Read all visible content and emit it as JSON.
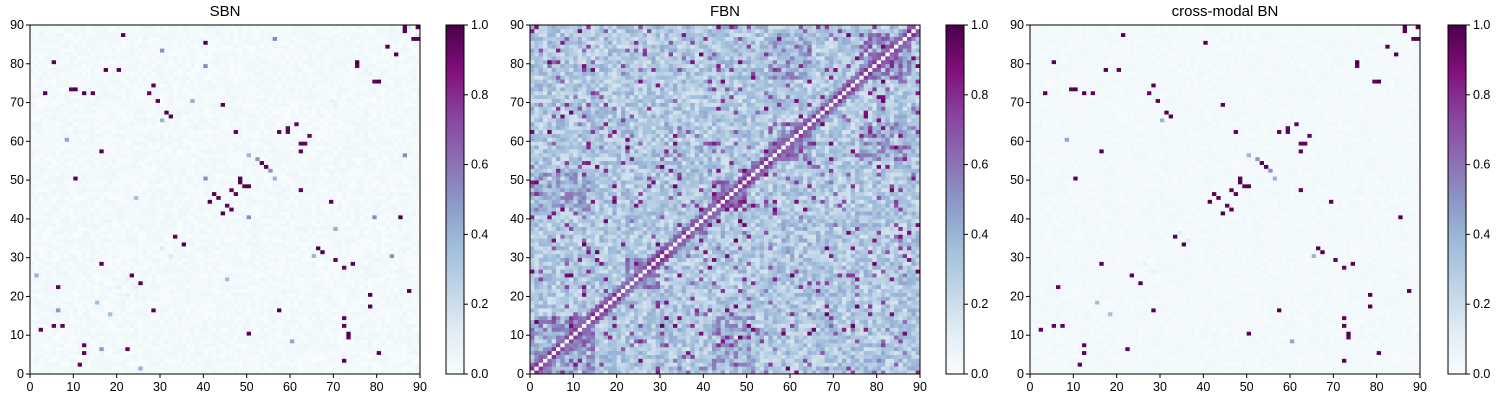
{
  "chart_data": [
    {
      "type": "heatmap",
      "title": "SBN",
      "xlabel": "",
      "ylabel": "",
      "xlim": [
        0,
        90
      ],
      "ylim": [
        0,
        90
      ],
      "grid_size": 90,
      "x_ticks": [
        "0",
        "10",
        "20",
        "30",
        "40",
        "50",
        "60",
        "70",
        "80",
        "90"
      ],
      "y_ticks": [
        "0",
        "10",
        "20",
        "30",
        "40",
        "50",
        "60",
        "70",
        "80",
        "90"
      ],
      "colorbar": {
        "range": [
          0,
          1
        ],
        "ticks": [
          "0.0",
          "0.2",
          "0.4",
          "0.6",
          "0.8",
          "1.0"
        ]
      },
      "colormap": [
        "#f7fcfd",
        "#e0ecf4",
        "#bfd3e6",
        "#9ebcda",
        "#8c96c6",
        "#8c6bb1",
        "#88419d",
        "#810f7c",
        "#4d004b"
      ],
      "background_value": 0.02,
      "strong_links": [
        [
          11,
          2
        ],
        [
          12,
          5
        ],
        [
          21,
          87
        ],
        [
          22,
          6
        ],
        [
          23,
          25
        ],
        [
          25,
          23
        ],
        [
          27,
          72
        ],
        [
          28,
          74
        ],
        [
          29,
          70
        ],
        [
          31,
          67
        ],
        [
          33,
          35
        ],
        [
          35,
          33
        ],
        [
          40,
          85
        ],
        [
          43,
          45
        ],
        [
          44,
          41
        ],
        [
          45,
          43
        ],
        [
          46,
          42
        ],
        [
          47,
          46
        ],
        [
          48,
          49
        ],
        [
          50,
          48
        ],
        [
          53,
          54
        ],
        [
          55,
          52
        ],
        [
          59,
          62
        ],
        [
          61,
          64
        ],
        [
          62,
          57
        ],
        [
          63,
          59
        ],
        [
          66,
          32
        ],
        [
          69,
          44
        ],
        [
          72,
          12
        ],
        [
          73,
          10
        ],
        [
          75,
          79
        ],
        [
          78,
          17
        ],
        [
          80,
          75
        ],
        [
          82,
          84
        ],
        [
          84,
          82
        ],
        [
          86,
          90
        ],
        [
          88,
          86
        ],
        [
          89,
          89
        ],
        [
          3,
          72
        ],
        [
          9,
          73
        ],
        [
          5,
          80
        ],
        [
          10,
          50
        ],
        [
          28,
          16
        ],
        [
          47,
          62
        ],
        [
          62,
          47
        ],
        [
          20,
          78
        ],
        [
          57,
          16
        ],
        [
          7,
          12
        ],
        [
          14,
          72
        ],
        [
          72,
          14
        ]
      ],
      "medium_links": [
        [
          15,
          18
        ],
        [
          18,
          15
        ],
        [
          52,
          55
        ],
        [
          56,
          50
        ],
        [
          65,
          30
        ],
        [
          30,
          65
        ],
        [
          8,
          60
        ],
        [
          60,
          8
        ],
        [
          37,
          70
        ],
        [
          70,
          37
        ],
        [
          79,
          40
        ],
        [
          40,
          79
        ],
        [
          1,
          25
        ],
        [
          25,
          1
        ],
        [
          16,
          6
        ],
        [
          6,
          16
        ],
        [
          45,
          24
        ],
        [
          24,
          45
        ],
        [
          83,
          30
        ],
        [
          30,
          83
        ],
        [
          50,
          40
        ],
        [
          40,
          50
        ],
        [
          86,
          56
        ],
        [
          56,
          86
        ]
      ],
      "diag_band": 0.12,
      "band_strength": 0.05,
      "noise": 0.05,
      "seed": 11
    },
    {
      "type": "heatmap",
      "title": "FBN",
      "xlabel": "",
      "ylabel": "",
      "xlim": [
        0,
        90
      ],
      "ylim": [
        0,
        90
      ],
      "grid_size": 90,
      "x_ticks": [
        "0",
        "10",
        "20",
        "30",
        "40",
        "50",
        "60",
        "70",
        "80",
        "90"
      ],
      "y_ticks": [
        "0",
        "10",
        "20",
        "30",
        "40",
        "50",
        "60",
        "70",
        "80",
        "90"
      ],
      "colorbar": {
        "range": [
          0,
          1
        ],
        "ticks": [
          "0.0",
          "0.2",
          "0.4",
          "0.6",
          "0.8",
          "1.0"
        ]
      },
      "colormap": [
        "#f7fcfd",
        "#e0ecf4",
        "#bfd3e6",
        "#9ebcda",
        "#8c96c6",
        "#8c6bb1",
        "#88419d",
        "#810f7c",
        "#4d004b"
      ],
      "background_value": 0.3,
      "strong_blocks": [
        [
          42,
          50,
          42,
          50,
          0.92
        ],
        [
          0,
          15,
          0,
          15,
          0.65
        ],
        [
          22,
          30,
          22,
          30,
          0.75
        ],
        [
          55,
          65,
          55,
          65,
          0.7
        ],
        [
          76,
          88,
          76,
          88,
          0.72
        ],
        [
          0,
          15,
          42,
          52,
          0.6
        ],
        [
          42,
          52,
          0,
          15,
          0.6
        ],
        [
          55,
          65,
          76,
          88,
          0.62
        ],
        [
          76,
          88,
          55,
          65,
          0.62
        ],
        [
          5,
          15,
          5,
          15,
          0.72
        ],
        [
          30,
          40,
          55,
          65,
          0.5
        ],
        [
          55,
          65,
          30,
          40,
          0.5
        ]
      ],
      "diag_band": 1.0,
      "band_strength": 0.85,
      "noise": 0.28,
      "seed": 29
    },
    {
      "type": "heatmap",
      "title": "cross-modal BN",
      "xlabel": "",
      "ylabel": "",
      "xlim": [
        0,
        90
      ],
      "ylim": [
        0,
        90
      ],
      "grid_size": 90,
      "x_ticks": [
        "0",
        "10",
        "20",
        "30",
        "40",
        "50",
        "60",
        "70",
        "80",
        "90"
      ],
      "y_ticks": [
        "0",
        "10",
        "20",
        "30",
        "40",
        "50",
        "60",
        "70",
        "80",
        "90"
      ],
      "colorbar": {
        "range": [
          0,
          1
        ],
        "ticks": [
          "0.0",
          "0.2",
          "0.4",
          "0.6",
          "0.8",
          "1.0"
        ]
      },
      "colormap": [
        "#f7fcfd",
        "#e0ecf4",
        "#bfd3e6",
        "#9ebcda",
        "#8c96c6",
        "#8c6bb1",
        "#88419d",
        "#810f7c",
        "#4d004b"
      ],
      "background_value": 0.02,
      "strong_links": [
        [
          11,
          2
        ],
        [
          12,
          5
        ],
        [
          21,
          87
        ],
        [
          22,
          6
        ],
        [
          23,
          25
        ],
        [
          25,
          23
        ],
        [
          27,
          72
        ],
        [
          28,
          74
        ],
        [
          29,
          70
        ],
        [
          31,
          67
        ],
        [
          33,
          35
        ],
        [
          35,
          33
        ],
        [
          40,
          85
        ],
        [
          43,
          45
        ],
        [
          44,
          41
        ],
        [
          45,
          43
        ],
        [
          46,
          42
        ],
        [
          47,
          46
        ],
        [
          48,
          49
        ],
        [
          50,
          48
        ],
        [
          53,
          54
        ],
        [
          55,
          52
        ],
        [
          59,
          62
        ],
        [
          61,
          64
        ],
        [
          62,
          57
        ],
        [
          63,
          59
        ],
        [
          66,
          32
        ],
        [
          69,
          44
        ],
        [
          72,
          12
        ],
        [
          73,
          10
        ],
        [
          75,
          79
        ],
        [
          78,
          17
        ],
        [
          80,
          75
        ],
        [
          82,
          84
        ],
        [
          84,
          82
        ],
        [
          86,
          90
        ],
        [
          88,
          86
        ],
        [
          89,
          89
        ],
        [
          3,
          72
        ],
        [
          9,
          73
        ],
        [
          5,
          80
        ],
        [
          10,
          50
        ],
        [
          28,
          16
        ],
        [
          47,
          62
        ],
        [
          62,
          47
        ],
        [
          20,
          78
        ],
        [
          57,
          16
        ],
        [
          7,
          12
        ],
        [
          14,
          72
        ],
        [
          72,
          14
        ]
      ],
      "medium_links": [
        [
          15,
          18
        ],
        [
          18,
          15
        ],
        [
          52,
          55
        ],
        [
          56,
          50
        ],
        [
          65,
          30
        ],
        [
          30,
          65
        ],
        [
          8,
          60
        ],
        [
          60,
          8
        ]
      ],
      "diag_band": 0.05,
      "band_strength": 0.03,
      "noise": 0.03,
      "seed": 11
    }
  ]
}
